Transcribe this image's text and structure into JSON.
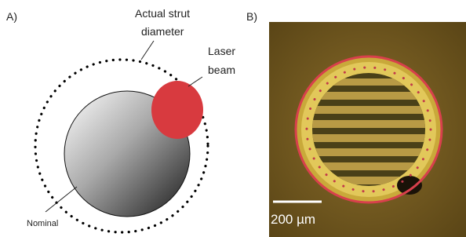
{
  "panel_a": {
    "label": "A)",
    "actual_strut": [
      "Actual strut",
      "diameter"
    ],
    "laser_beam": [
      "Laser",
      "beam"
    ],
    "nominal": "Nominal"
  },
  "panel_b": {
    "label": "B)",
    "scale_bar": "200 µm"
  }
}
